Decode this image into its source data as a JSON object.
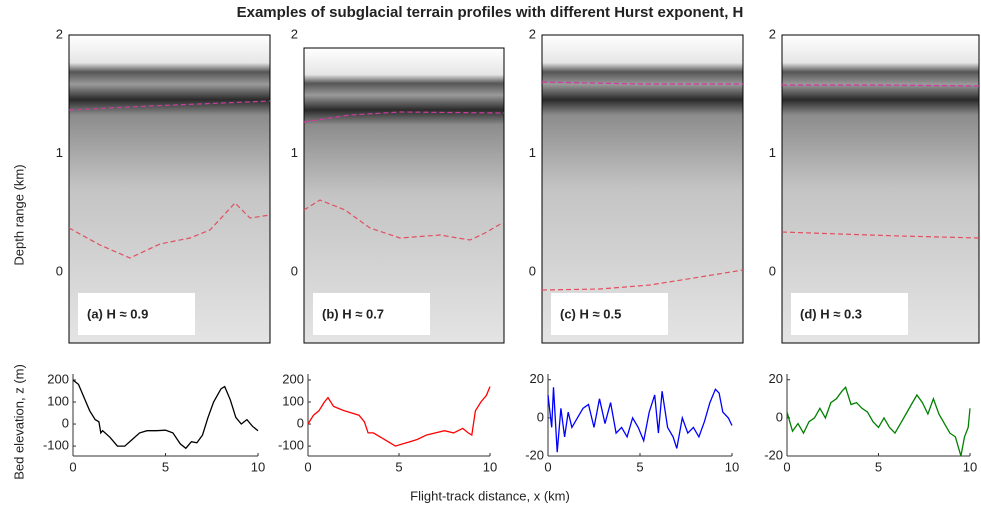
{
  "title": "Examples of subglacial terrain profiles with different Hurst exponent, H",
  "depth_label": "Depth range (km)",
  "radargrams": {
    "ylim": [
      -0.6,
      2
    ],
    "yticks": [
      0,
      1,
      2
    ],
    "panels": [
      {
        "label": "(a) H ≈ 0.9"
      },
      {
        "label": "(b) H ≈ 0.7"
      },
      {
        "label": "(c) H ≈ 0.5"
      },
      {
        "label": "(d) H ≈ 0.3"
      }
    ]
  },
  "y_label": "Bed elevation, z (m)",
  "x_label": "Flight-track distance, x (km)",
  "chart_data": [
    {
      "type": "line",
      "color": "#000000",
      "xlim": [
        0,
        10
      ],
      "xticks": [
        0,
        5,
        10
      ],
      "ylim": [
        -145,
        227
      ],
      "yticks": [
        -100,
        0,
        100,
        200
      ],
      "x": [
        0,
        0.3,
        0.6,
        0.9,
        1.2,
        1.4,
        1.5,
        1.6,
        2.0,
        2.4,
        2.8,
        3.2,
        3.6,
        4.0,
        4.5,
        5.0,
        5.4,
        5.8,
        6.1,
        6.4,
        6.7,
        7.0,
        7.3,
        7.6,
        8.0,
        8.2,
        8.5,
        8.8,
        9.1,
        9.4,
        9.7,
        10
      ],
      "values": [
        200,
        180,
        120,
        60,
        20,
        10,
        -40,
        -30,
        -60,
        -100,
        -100,
        -70,
        -40,
        -30,
        -30,
        -28,
        -40,
        -90,
        -110,
        -80,
        -85,
        -50,
        30,
        100,
        160,
        170,
        110,
        30,
        0,
        20,
        -10,
        -30
      ]
    },
    {
      "type": "line",
      "color": "#ff0000",
      "xlim": [
        0,
        10
      ],
      "xticks": [
        0,
        5,
        10
      ],
      "ylim": [
        -145,
        227
      ],
      "yticks": [
        -100,
        0,
        100,
        200
      ],
      "x": [
        0,
        0.3,
        0.6,
        0.9,
        1.1,
        1.4,
        1.7,
        2.0,
        2.4,
        2.8,
        3.1,
        3.3,
        3.6,
        4.0,
        4.4,
        4.8,
        5.2,
        5.6,
        6.0,
        6.5,
        7.0,
        7.5,
        8.0,
        8.5,
        8.8,
        9.0,
        9.2,
        9.5,
        9.8,
        10
      ],
      "values": [
        0,
        40,
        60,
        100,
        120,
        80,
        70,
        60,
        50,
        40,
        10,
        -40,
        -40,
        -60,
        -80,
        -100,
        -90,
        -80,
        -70,
        -50,
        -40,
        -30,
        -40,
        -20,
        -40,
        -50,
        60,
        100,
        130,
        170
      ]
    },
    {
      "type": "line",
      "color": "#0000ff",
      "xlim": [
        0,
        10
      ],
      "xticks": [
        0,
        5,
        10
      ],
      "ylim": [
        -20,
        23
      ],
      "yticks": [
        -20,
        0,
        20
      ],
      "x": [
        0,
        0.2,
        0.3,
        0.5,
        0.7,
        0.9,
        1.1,
        1.3,
        1.6,
        1.9,
        2.2,
        2.5,
        2.8,
        3.1,
        3.4,
        3.7,
        4.0,
        4.3,
        4.6,
        4.9,
        5.2,
        5.5,
        5.8,
        6.0,
        6.2,
        6.5,
        6.8,
        7.0,
        7.3,
        7.6,
        7.9,
        8.2,
        8.5,
        8.8,
        9.1,
        9.3,
        9.5,
        9.8,
        10
      ],
      "values": [
        12,
        -5,
        16,
        -18,
        5,
        -10,
        3,
        -5,
        0,
        5,
        7,
        -5,
        10,
        -3,
        8,
        -8,
        -5,
        -10,
        0,
        -5,
        -12,
        3,
        12,
        -8,
        14,
        -5,
        -10,
        -16,
        0,
        -8,
        -5,
        -10,
        -2,
        8,
        15,
        13,
        3,
        0,
        -4
      ]
    },
    {
      "type": "line",
      "color": "#008000",
      "xlim": [
        0,
        10
      ],
      "xticks": [
        0,
        5,
        10
      ],
      "ylim": [
        -20,
        23
      ],
      "yticks": [
        -20,
        0,
        20
      ],
      "x": [
        0,
        0.3,
        0.6,
        0.9,
        1.2,
        1.5,
        1.8,
        2.1,
        2.4,
        2.7,
        3.0,
        3.2,
        3.5,
        3.8,
        4.1,
        4.4,
        4.7,
        5.0,
        5.3,
        5.6,
        5.9,
        6.2,
        6.5,
        6.8,
        7.1,
        7.4,
        7.7,
        8.0,
        8.3,
        8.6,
        8.9,
        9.2,
        9.5,
        9.7,
        9.9,
        10
      ],
      "values": [
        3,
        -7,
        -3,
        -8,
        -2,
        0,
        5,
        0,
        8,
        10,
        14,
        16,
        7,
        8,
        5,
        3,
        -2,
        -5,
        0,
        -5,
        -8,
        -3,
        2,
        7,
        12,
        8,
        2,
        10,
        2,
        -3,
        -8,
        -10,
        -20,
        -10,
        -5,
        5
      ]
    }
  ]
}
